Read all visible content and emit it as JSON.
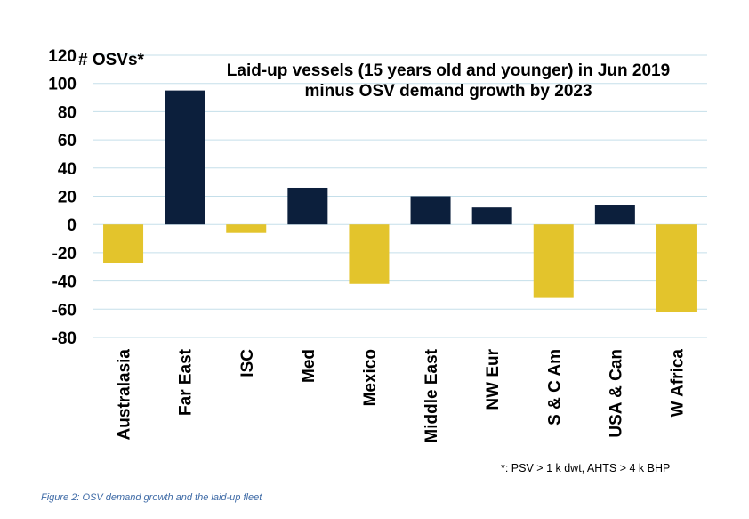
{
  "chart_data": {
    "type": "bar",
    "title_lines": [
      "Laid-up vessels (15 years old and younger) in Jun 2019",
      "minus OSV demand growth by 2023"
    ],
    "ylabel": "# OSVs*",
    "xlabel": "",
    "ylim": [
      -80,
      120
    ],
    "yticks": [
      120,
      100,
      80,
      60,
      40,
      20,
      0,
      -20,
      -40,
      -60,
      -80
    ],
    "grid": true,
    "categories": [
      "Australasia",
      "Far East",
      "ISC",
      "Med",
      "Mexico",
      "Middle East",
      "NW Eur",
      "S & C Am",
      "USA & Can",
      "W Africa"
    ],
    "values": [
      -27,
      95,
      -6,
      26,
      -42,
      20,
      12,
      -52,
      14,
      -62
    ],
    "colors": {
      "positive": "#0c1f3c",
      "negative": "#e3c42c",
      "grid": "#c5dfea"
    }
  },
  "footnote": "*: PSV > 1 k dwt, AHTS > 4 k BHP",
  "caption": "Figure 2: OSV demand growth and the laid-up fleet"
}
